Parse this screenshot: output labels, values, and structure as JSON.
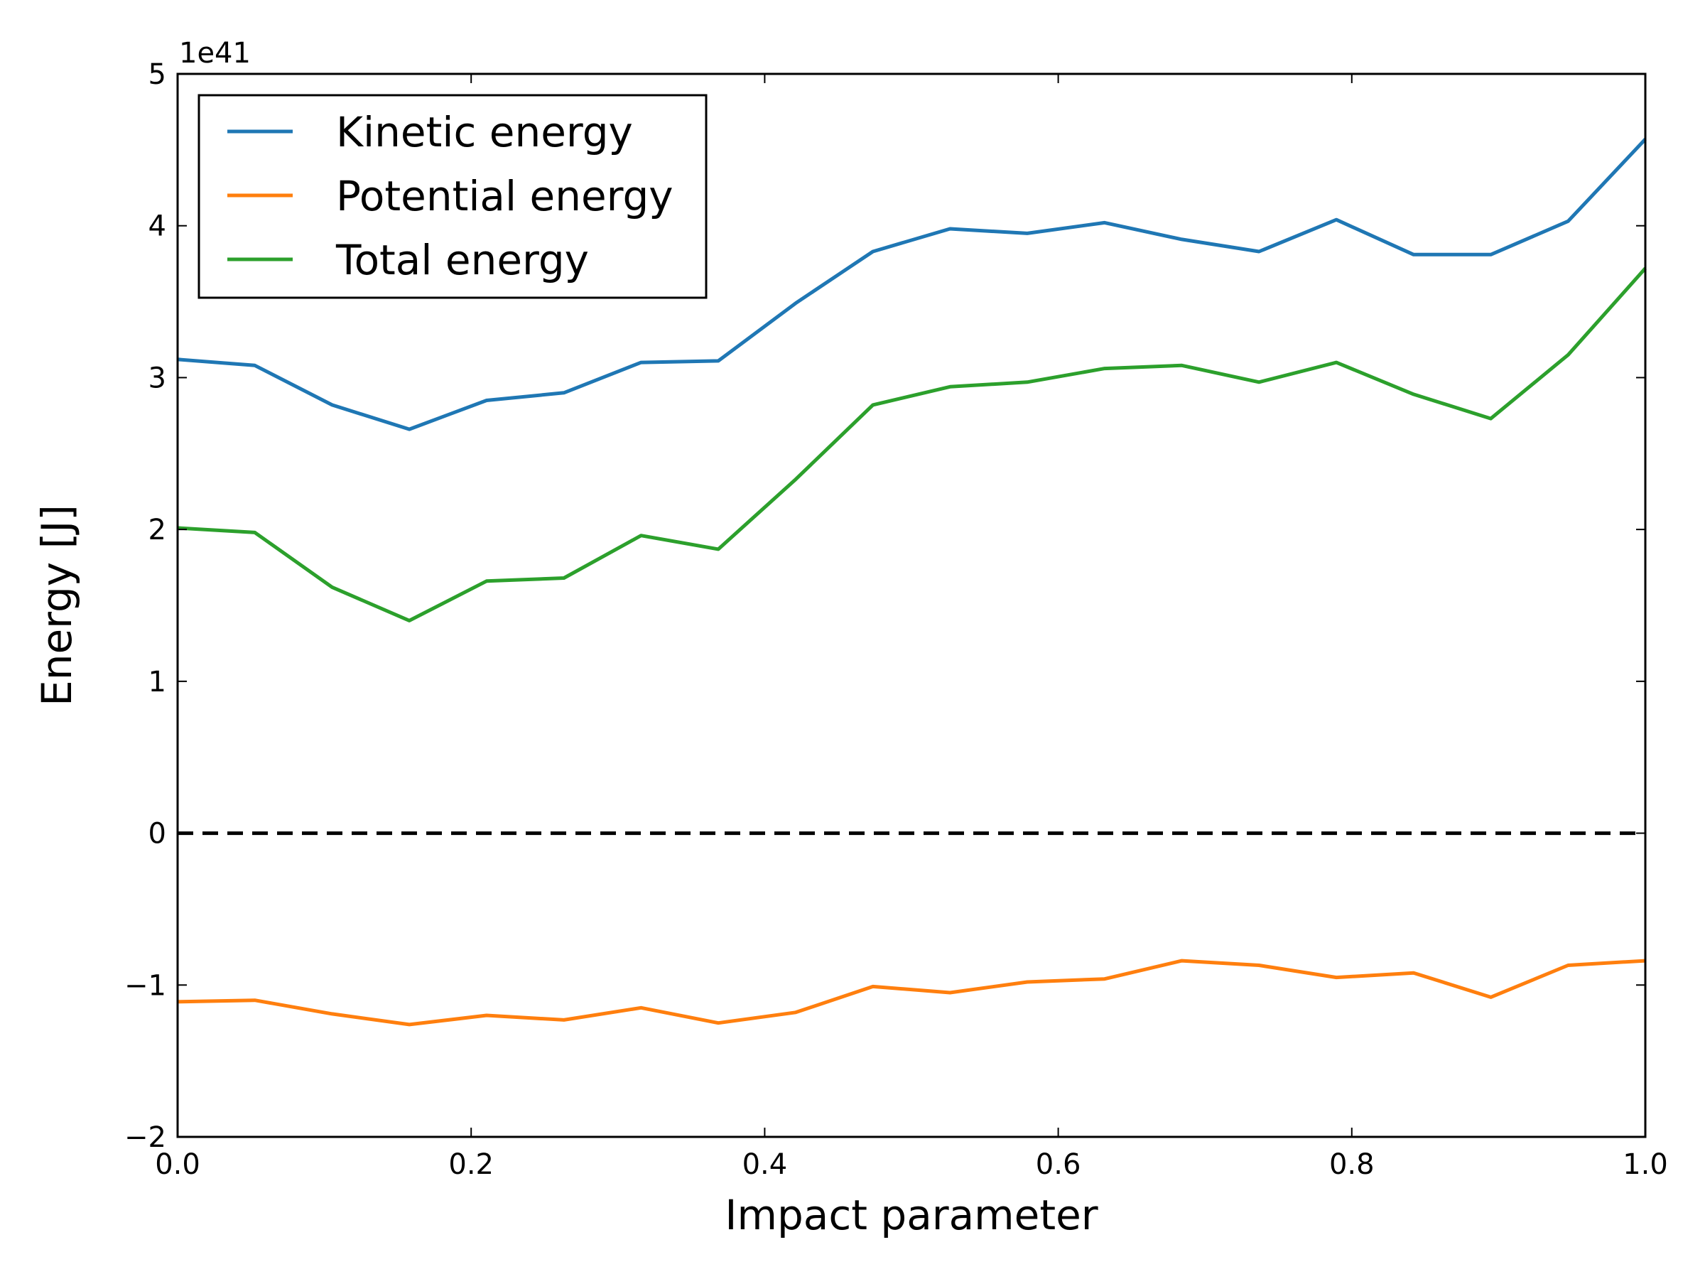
{
  "chart_data": {
    "type": "line",
    "title": "",
    "xlabel": "Impact parameter",
    "ylabel": "Energy [J]",
    "y_offset_label": "1e41",
    "xlim": [
      0.0,
      1.0
    ],
    "ylim": [
      -2,
      5
    ],
    "x_ticks": [
      0.0,
      0.2,
      0.4,
      0.6,
      0.8,
      1.0
    ],
    "x_tick_labels": [
      "0.0",
      "0.2",
      "0.4",
      "0.6",
      "0.8",
      "1.0"
    ],
    "y_ticks": [
      -2,
      -1,
      0,
      1,
      2,
      3,
      4,
      5
    ],
    "y_tick_labels": [
      "−2",
      "−1",
      "0",
      "1",
      "2",
      "3",
      "4",
      "5"
    ],
    "legend_position": "top-left",
    "grid": false,
    "x": [
      0.0,
      0.0526,
      0.1053,
      0.1579,
      0.2105,
      0.2632,
      0.3158,
      0.3684,
      0.4211,
      0.4737,
      0.5263,
      0.5789,
      0.6316,
      0.6842,
      0.7368,
      0.7895,
      0.8421,
      0.8947,
      0.9474,
      1.0
    ],
    "series": [
      {
        "name": "Kinetic energy",
        "color": "#1f77b4",
        "values": [
          3.12,
          3.08,
          2.82,
          2.66,
          2.85,
          2.9,
          3.1,
          3.11,
          3.49,
          3.83,
          3.98,
          3.95,
          4.02,
          3.91,
          3.83,
          4.04,
          3.81,
          3.81,
          4.03,
          4.57
        ]
      },
      {
        "name": "Potential energy",
        "color": "#ff7f0e",
        "values": [
          -1.11,
          -1.1,
          -1.19,
          -1.26,
          -1.2,
          -1.23,
          -1.15,
          -1.25,
          -1.18,
          -1.01,
          -1.05,
          -0.98,
          -0.96,
          -0.84,
          -0.87,
          -0.95,
          -0.92,
          -1.08,
          -0.87,
          -0.84
        ]
      },
      {
        "name": "Total energy",
        "color": "#2ca02c",
        "values": [
          2.01,
          1.98,
          1.62,
          1.4,
          1.66,
          1.68,
          1.96,
          1.87,
          2.33,
          2.82,
          2.94,
          2.97,
          3.06,
          3.08,
          2.97,
          3.1,
          2.89,
          2.73,
          3.15,
          3.72
        ]
      }
    ],
    "reference_lines": [
      {
        "y": 0,
        "style": "dashed",
        "color": "#000000"
      }
    ]
  }
}
